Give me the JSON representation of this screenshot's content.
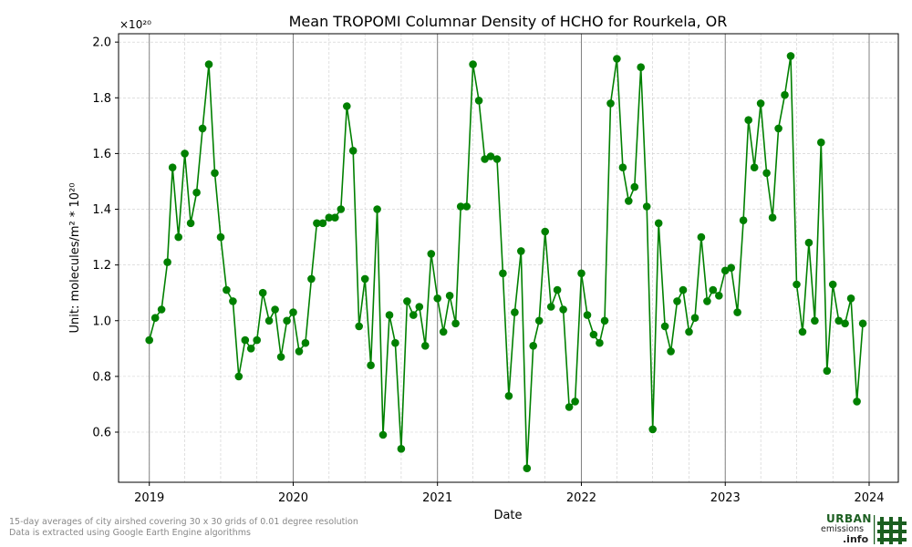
{
  "chart_data": {
    "type": "line",
    "title": "Mean TROPOMI Columnar Density of HCHO for Rourkela, OR",
    "xlabel": "Date",
    "ylabel": "Unit: molecules/m² * 10²⁰",
    "y_multiplier_label": "×10²⁰",
    "x_ticks": [
      "2019",
      "2020",
      "2021",
      "2022",
      "2023",
      "2024"
    ],
    "y_ticks": [
      "0.6",
      "0.8",
      "1.0",
      "1.2",
      "1.4",
      "1.6",
      "1.8",
      "2.0"
    ],
    "xlim": [
      "2018-10-15",
      "2024-03-15"
    ],
    "ylim": [
      0.42,
      2.03
    ],
    "grid": true,
    "line_color": "#008000",
    "series": [
      {
        "x": [
          "2019-01-01",
          "2019-01-16",
          "2019-02-01",
          "2019-02-16",
          "2019-03-01",
          "2019-03-16",
          "2019-04-01",
          "2019-04-16",
          "2019-05-01",
          "2019-05-16",
          "2019-06-01",
          "2019-06-16",
          "2019-07-01",
          "2019-07-16",
          "2019-08-01",
          "2019-08-16",
          "2019-09-01",
          "2019-09-16",
          "2019-10-01",
          "2019-10-16",
          "2019-11-01",
          "2019-11-16",
          "2019-12-01",
          "2019-12-16",
          "2020-01-01",
          "2020-01-16",
          "2020-02-01",
          "2020-02-16",
          "2020-03-01",
          "2020-03-16",
          "2020-04-01",
          "2020-04-16",
          "2020-05-01",
          "2020-05-16",
          "2020-06-01",
          "2020-06-16",
          "2020-07-01",
          "2020-07-16",
          "2020-08-01",
          "2020-08-16",
          "2020-09-01",
          "2020-09-16",
          "2020-10-01",
          "2020-10-16",
          "2020-11-01",
          "2020-11-16",
          "2020-12-01",
          "2020-12-16",
          "2021-01-01",
          "2021-01-16",
          "2021-02-01",
          "2021-02-16",
          "2021-03-01",
          "2021-03-16",
          "2021-04-01",
          "2021-04-16",
          "2021-05-01",
          "2021-05-16",
          "2021-06-01",
          "2021-06-16",
          "2021-07-01",
          "2021-07-16",
          "2021-08-01",
          "2021-08-16",
          "2021-09-01",
          "2021-09-16",
          "2021-10-01",
          "2021-10-16",
          "2021-11-01",
          "2021-11-16",
          "2021-12-01",
          "2021-12-16",
          "2022-01-01",
          "2022-01-16",
          "2022-02-01",
          "2022-02-16",
          "2022-03-01",
          "2022-03-16",
          "2022-04-01",
          "2022-04-16",
          "2022-05-01",
          "2022-05-16",
          "2022-06-01",
          "2022-06-16",
          "2022-07-01",
          "2022-07-16",
          "2022-08-01",
          "2022-08-16",
          "2022-09-01",
          "2022-09-16",
          "2022-10-01",
          "2022-10-16",
          "2022-11-01",
          "2022-11-16",
          "2022-12-01",
          "2022-12-16",
          "2023-01-01",
          "2023-01-16",
          "2023-02-01",
          "2023-02-16",
          "2023-03-01",
          "2023-03-16",
          "2023-04-01",
          "2023-04-16",
          "2023-05-01",
          "2023-05-16",
          "2023-06-01",
          "2023-06-16",
          "2023-07-01",
          "2023-07-16",
          "2023-08-01",
          "2023-08-16",
          "2023-09-01",
          "2023-09-16",
          "2023-10-01",
          "2023-10-16",
          "2023-11-01",
          "2023-11-16",
          "2023-12-01",
          "2023-12-16"
        ],
        "values": [
          0.93,
          1.01,
          1.04,
          1.21,
          1.55,
          1.3,
          1.6,
          1.35,
          1.46,
          1.69,
          1.92,
          1.53,
          1.3,
          1.11,
          1.07,
          0.8,
          0.93,
          0.9,
          0.93,
          1.1,
          1.0,
          1.04,
          0.87,
          1.0,
          1.03,
          0.89,
          0.92,
          1.15,
          1.35,
          1.35,
          1.37,
          1.37,
          1.4,
          1.77,
          1.61,
          0.98,
          1.15,
          0.84,
          1.4,
          0.59,
          1.02,
          0.92,
          0.54,
          1.07,
          1.02,
          1.05,
          0.91,
          1.24,
          1.08,
          0.96,
          1.09,
          0.99,
          1.41,
          1.41,
          1.92,
          1.79,
          1.58,
          1.59,
          1.58,
          1.17,
          0.73,
          1.03,
          1.25,
          0.47,
          0.91,
          1.0,
          1.32,
          1.05,
          1.11,
          1.04,
          0.69,
          0.71,
          1.17,
          1.02,
          0.95,
          0.92,
          1.0,
          1.78,
          1.94,
          1.55,
          1.43,
          1.48,
          1.91,
          1.41,
          0.61,
          1.35,
          0.98,
          0.89,
          1.07,
          1.11,
          0.96,
          1.01,
          1.3,
          1.07,
          1.11,
          1.09,
          1.18,
          1.19,
          1.03,
          1.36,
          1.72,
          1.55,
          1.78,
          1.53,
          1.37,
          1.69,
          1.81,
          1.95,
          1.13,
          0.96,
          1.28,
          1.0,
          1.64,
          0.82,
          1.13,
          1.0,
          0.99,
          1.08,
          0.71,
          0.99
        ]
      }
    ]
  },
  "footnotes": {
    "line1": "15-day averages of city airshed covering 30 x 30 grids of 0.01 degree resolution",
    "line2": "Data is extracted using Google Earth Engine algorithms"
  },
  "logo": {
    "word1": "URBAN",
    "word2": "emissions",
    "word3": ".info"
  }
}
